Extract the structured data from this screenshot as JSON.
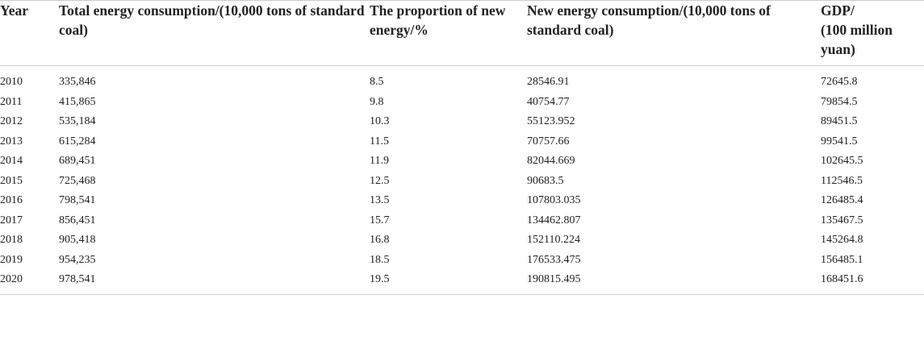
{
  "table": {
    "header": [
      "Year",
      "Total energy consumption/(10,000 tons of standard coal)",
      "The proportion of new energy/%",
      "New energy consumption/(10,000 tons of standard coal)",
      "GDP/\n(100 million yuan)"
    ],
    "rows": [
      [
        "2010",
        "335,846",
        "8.5",
        "28546.91",
        "72645.8"
      ],
      [
        "2011",
        "415,865",
        "9.8",
        "40754.77",
        "79854.5"
      ],
      [
        "2012",
        "535,184",
        "10.3",
        "55123.952",
        "89451.5"
      ],
      [
        "2013",
        "615,284",
        "11.5",
        "70757.66",
        "99541.5"
      ],
      [
        "2014",
        "689,451",
        "11.9",
        "82044.669",
        "102645.5"
      ],
      [
        "2015",
        "725,468",
        "12.5",
        "90683.5",
        "112546.5"
      ],
      [
        "2016",
        "798,541",
        "13.5",
        "107803.035",
        "126485.4"
      ],
      [
        "2017",
        "856,451",
        "15.7",
        "134462.807",
        "135467.5"
      ],
      [
        "2018",
        "905,418",
        "16.8",
        "152110.224",
        "145264.8"
      ],
      [
        "2019",
        "954,235",
        "18.5",
        "176533.475",
        "156485.1"
      ],
      [
        "2020",
        "978,541",
        "19.5",
        "190815.495",
        "168451.6"
      ]
    ]
  }
}
